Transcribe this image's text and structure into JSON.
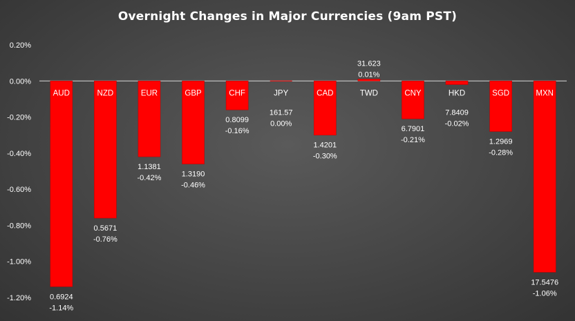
{
  "chart_data": {
    "type": "bar",
    "title": "Overnight Changes in Major Currencies (9am PST)",
    "categories": [
      "AUD",
      "NZD",
      "EUR",
      "GBP",
      "CHF",
      "JPY",
      "CAD",
      "TWD",
      "CNY",
      "HKD",
      "SGD",
      "MXN"
    ],
    "values": [
      -1.14,
      -0.76,
      -0.42,
      -0.46,
      -0.16,
      0.0,
      -0.3,
      0.01,
      -0.21,
      -0.02,
      -0.28,
      -1.06
    ],
    "value_labels": [
      "-1.14%",
      "-0.76%",
      "-0.42%",
      "-0.46%",
      "-0.16%",
      "0.00%",
      "-0.30%",
      "0.01%",
      "-0.21%",
      "-0.02%",
      "-0.28%",
      "-1.06%"
    ],
    "rates": [
      "0.6924",
      "0.5671",
      "1.1381",
      "1.3190",
      "0.8099",
      "161.57",
      "1.4201",
      "31.623",
      "6.7901",
      "7.8409",
      "1.2969",
      "17.5476"
    ],
    "y_ticks": [
      "0.20%",
      "0.00%",
      "-0.20%",
      "-0.40%",
      "-0.60%",
      "-0.80%",
      "-1.00%",
      "-1.20%"
    ],
    "ylim": [
      -1.2,
      0.2
    ],
    "xlabel": "",
    "ylabel": "",
    "legend": "none",
    "grid": false,
    "colors": {
      "bar": "#ff0000",
      "bar_stroke": "#c00000",
      "axis_line": "#d9d9d9",
      "text": "#ffffff",
      "background": "#4a4a4a"
    }
  }
}
